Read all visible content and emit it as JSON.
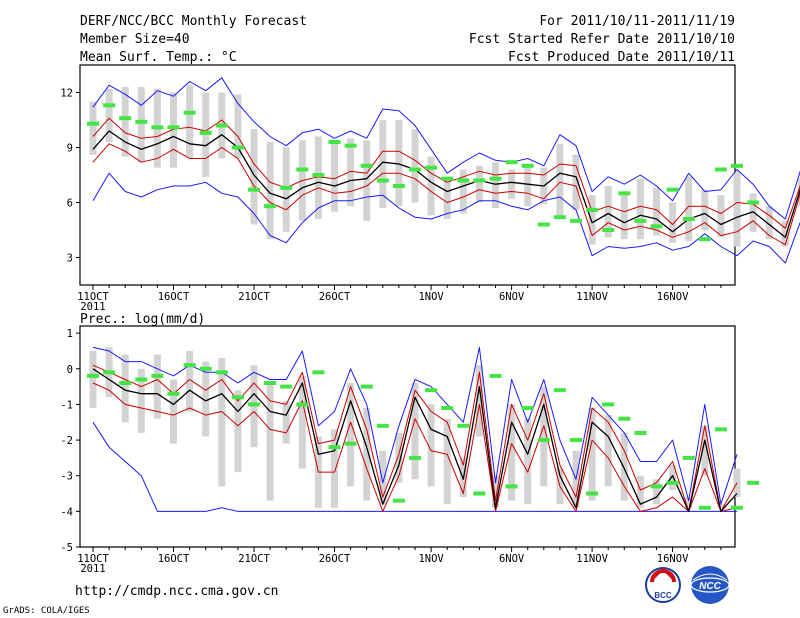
{
  "header": {
    "title": "DERF/NCC/BCC Monthly Forecast",
    "member_size": "Member Size=40",
    "variable": "Mean Surf. Temp.: °C",
    "period": "For 2011/10/11-2011/11/19",
    "start_date": "Fcst Started Refer Date 2011/10/10",
    "produced_date": "Fcst Produced Date 2011/10/11"
  },
  "footer": {
    "url": "http://cmdp.ncc.cma.gov.cn",
    "grads": "GrADS: COLA/IGES",
    "logo_bcc": "BCC",
    "logo_ncc": "NCC"
  },
  "colors": {
    "spread": "#1a1aff",
    "ensemble": "#cc0000",
    "mean": "#000000",
    "range_bar": "#d3d3d3",
    "marker": "#44e444"
  },
  "chart_data": [
    {
      "type": "line",
      "title": "Mean Surf. Temp.: °C",
      "x_tick_labels": [
        "11OCT",
        "16OCT",
        "21OCT",
        "26OCT",
        "1NOV",
        "6NOV",
        "11NOV",
        "16NOV"
      ],
      "x_year_label": "2011",
      "ylim": [
        1.5,
        13.5
      ],
      "y_ticks": [
        3,
        6,
        9,
        12
      ],
      "y_tick_labels": [
        "3",
        "6",
        "9",
        "12"
      ],
      "series": [
        {
          "name": "max",
          "values": [
            6.1,
            7.6,
            6.6,
            6.3,
            6.7,
            6.9,
            6.9,
            7.1,
            6.5,
            6.3,
            5.4,
            4.2,
            3.8,
            4.9,
            5.7,
            6.1,
            6.1,
            6.3,
            6.4,
            5.7,
            5.2,
            5.1,
            5.4,
            5.6,
            6.1,
            6.1,
            5.8,
            5.6,
            6.1,
            6.3,
            5.6,
            3.1,
            3.6,
            3.5,
            3.6,
            3.8,
            3.4,
            3.6,
            4.3,
            3.6,
            3.1,
            3.9,
            3.6,
            2.7,
            5.1,
            6.1,
            7.1,
            4.9
          ]
        },
        {
          "name": "min",
          "values": [
            11.2,
            12.4,
            11.9,
            11.3,
            12.1,
            11.8,
            12.6,
            12.1,
            12.8,
            11.4,
            10.4,
            9.6,
            9.1,
            9.8,
            10.0,
            9.5,
            9.9,
            9.5,
            11.1,
            11.0,
            10.2,
            8.9,
            7.6,
            8.2,
            8.7,
            8.3,
            8.2,
            8.4,
            8.0,
            9.7,
            9.1,
            6.6,
            7.4,
            7.0,
            7.5,
            6.9,
            6.1,
            7.6,
            6.6,
            6.7,
            7.8,
            7.0,
            5.8,
            5.1,
            7.9,
            9.1,
            8.3,
            7.0
          ]
        },
        {
          "name": "ens_upper",
          "values": [
            9.6,
            10.6,
            9.8,
            9.5,
            9.6,
            10.0,
            10.1,
            9.9,
            10.5,
            9.6,
            8.1,
            7.1,
            6.8,
            7.2,
            7.4,
            7.3,
            7.7,
            7.6,
            8.8,
            8.8,
            8.3,
            7.6,
            7.1,
            7.4,
            7.7,
            7.5,
            7.6,
            7.6,
            7.5,
            8.1,
            8.0,
            5.5,
            5.8,
            5.5,
            5.8,
            5.6,
            4.8,
            5.8,
            5.8,
            5.4,
            6.0,
            5.9,
            5.3,
            4.6,
            7.1,
            8.0,
            7.8,
            6.0
          ]
        },
        {
          "name": "ens_lower",
          "values": [
            8.2,
            9.2,
            8.8,
            8.2,
            8.4,
            8.9,
            8.4,
            8.4,
            9.0,
            8.4,
            6.9,
            6.0,
            5.6,
            6.4,
            6.8,
            6.5,
            6.6,
            6.9,
            7.6,
            7.6,
            7.3,
            6.6,
            6.0,
            6.3,
            6.7,
            6.5,
            6.6,
            6.5,
            6.2,
            7.1,
            6.9,
            4.2,
            4.9,
            4.5,
            4.7,
            4.5,
            4.1,
            4.4,
            4.9,
            4.2,
            4.4,
            5.0,
            4.2,
            3.7,
            6.7,
            7.3,
            7.0,
            5.4
          ]
        },
        {
          "name": "mean",
          "values": [
            8.9,
            9.9,
            9.3,
            8.9,
            9.2,
            9.6,
            9.2,
            9.1,
            9.7,
            9.0,
            7.5,
            6.5,
            6.2,
            6.8,
            7.1,
            6.9,
            7.2,
            7.3,
            8.2,
            8.1,
            7.8,
            7.1,
            6.6,
            6.9,
            7.2,
            7.0,
            7.1,
            7.0,
            6.9,
            7.6,
            7.4,
            4.9,
            5.4,
            4.9,
            5.3,
            5.1,
            4.4,
            5.1,
            5.4,
            4.8,
            5.2,
            5.5,
            4.8,
            4.1,
            6.9,
            7.7,
            7.4,
            5.7
          ]
        },
        {
          "name": "range_top",
          "values": [
            11.5,
            12.2,
            12.3,
            12.3,
            12.2,
            12.0,
            12.4,
            12.0,
            12.0,
            11.9,
            10.0,
            9.3,
            9.0,
            9.4,
            9.6,
            9.2,
            9.5,
            9.4,
            10.5,
            10.5,
            10.0,
            8.5,
            7.4,
            7.8,
            8.0,
            8.2,
            7.8,
            8.0,
            7.9,
            9.2,
            8.6,
            6.4,
            6.9,
            6.6,
            7.3,
            6.8,
            6.0,
            7.4,
            6.7,
            6.4,
            7.7,
            6.5,
            5.8,
            5.0,
            7.3,
            8.9,
            9.3,
            6.2
          ]
        },
        {
          "name": "range_bottom",
          "values": [
            8.6,
            9.3,
            8.5,
            8.2,
            7.9,
            7.9,
            8.4,
            7.4,
            8.4,
            8.4,
            4.8,
            4.0,
            4.4,
            5.0,
            5.1,
            5.5,
            5.8,
            5.0,
            5.7,
            5.8,
            6.0,
            5.3,
            5.1,
            5.4,
            6.0,
            5.7,
            6.2,
            5.8,
            5.9,
            5.3,
            5.6,
            3.7,
            4.1,
            4.0,
            4.0,
            4.2,
            3.8,
            3.9,
            4.5,
            4.1,
            3.6,
            4.4,
            4.0,
            3.6,
            5.8,
            6.1,
            7.1,
            5.6
          ]
        },
        {
          "name": "obs_marker",
          "values": [
            10.3,
            11.3,
            10.6,
            10.4,
            10.1,
            10.1,
            10.9,
            9.8,
            10.2,
            9.0,
            6.7,
            5.8,
            6.8,
            7.8,
            7.5,
            9.3,
            9.1,
            8.0,
            7.2,
            6.9,
            7.8,
            7.9,
            7.3,
            7.2,
            7.2,
            7.3,
            8.2,
            8.0,
            4.8,
            5.2,
            5.0,
            5.6,
            4.5,
            6.5,
            5.0,
            4.7,
            6.7,
            5.1,
            4.0,
            7.8,
            8.0,
            6.0
          ]
        }
      ]
    },
    {
      "type": "line",
      "title": "Prec.: log(mm/d)",
      "x_tick_labels": [
        "11OCT",
        "16OCT",
        "21OCT",
        "26OCT",
        "1NOV",
        "6NOV",
        "11NOV",
        "16NOV"
      ],
      "x_year_label": "2011",
      "ylim": [
        -5,
        1.2
      ],
      "y_ticks": [
        -5,
        -4,
        -3,
        -2,
        -1,
        0,
        1
      ],
      "y_tick_labels": [
        "-5",
        "-4",
        "-3",
        "-2",
        "-1",
        "0",
        "1"
      ],
      "series": [
        {
          "name": "max",
          "values": [
            0.6,
            0.5,
            0.2,
            0.2,
            0.0,
            -0.2,
            0.1,
            -0.1,
            -0.1,
            -0.4,
            -0.1,
            -0.3,
            -0.3,
            0.5,
            -1.6,
            -1.2,
            0.0,
            -1.0,
            -3.2,
            -1.6,
            -0.3,
            -0.5,
            -1.0,
            -1.5,
            0.6,
            -3.2,
            -0.3,
            -1.5,
            -0.3,
            -2.0,
            -3.1,
            -0.8,
            -1.3,
            -1.8,
            -2.6,
            -2.6,
            -2.0,
            -3.7,
            -1.0,
            -3.8,
            -2.4
          ]
        },
        {
          "name": "min",
          "values": [
            -1.5,
            -2.2,
            -2.6,
            -3.0,
            -4.0,
            -4.0,
            -4.0,
            -4.0,
            -3.9,
            -4.0,
            -4.0,
            -4.0,
            -4.0,
            -4.0,
            -4.0,
            -4.0,
            -4.0,
            -4.0,
            -4.0,
            -4.0,
            -4.0,
            -4.0,
            -4.0,
            -4.0,
            -4.0,
            -4.0,
            -4.0,
            -4.0,
            -4.0,
            -4.0,
            -4.0,
            -4.0,
            -4.0,
            -4.0,
            -4.0,
            -4.0,
            -4.0,
            -4.0,
            -4.0,
            -4.0,
            -4.0
          ]
        },
        {
          "name": "ens_upper",
          "values": [
            0.1,
            -0.1,
            -0.3,
            -0.5,
            -0.3,
            -0.7,
            -0.3,
            -0.6,
            -0.3,
            -0.9,
            -0.4,
            -0.9,
            -1.0,
            -0.1,
            -2.1,
            -2.0,
            -0.5,
            -1.7,
            -3.6,
            -2.4,
            -0.6,
            -1.2,
            -1.5,
            -2.7,
            -0.1,
            -3.7,
            -1.0,
            -2.0,
            -0.7,
            -2.7,
            -3.6,
            -1.1,
            -1.5,
            -2.3,
            -3.4,
            -3.2,
            -2.6,
            -4.0,
            -1.6,
            -4.0,
            -3.2
          ]
        },
        {
          "name": "ens_lower",
          "values": [
            -0.4,
            -0.6,
            -1.0,
            -1.1,
            -1.2,
            -1.3,
            -1.1,
            -1.3,
            -1.2,
            -1.6,
            -1.2,
            -1.7,
            -1.8,
            -0.9,
            -2.9,
            -2.9,
            -1.5,
            -2.8,
            -4.0,
            -3.0,
            -1.4,
            -2.3,
            -2.4,
            -3.5,
            -1.0,
            -4.0,
            -2.1,
            -2.9,
            -1.6,
            -3.3,
            -4.0,
            -2.0,
            -2.5,
            -3.3,
            -4.0,
            -3.9,
            -3.6,
            -4.0,
            -2.8,
            -4.0,
            -3.9
          ]
        },
        {
          "name": "mean",
          "values": [
            0.0,
            -0.3,
            -0.6,
            -0.7,
            -0.7,
            -1.0,
            -0.6,
            -0.9,
            -0.7,
            -1.2,
            -0.7,
            -1.2,
            -1.3,
            -0.4,
            -2.4,
            -2.3,
            -0.9,
            -2.2,
            -3.8,
            -2.7,
            -0.8,
            -1.7,
            -1.9,
            -3.1,
            -0.5,
            -3.9,
            -1.5,
            -2.4,
            -1.0,
            -3.0,
            -3.9,
            -1.5,
            -1.9,
            -2.8,
            -3.8,
            -3.6,
            -3.0,
            -4.0,
            -2.0,
            -4.0,
            -3.5
          ]
        },
        {
          "name": "range_top",
          "values": [
            0.5,
            0.6,
            0.4,
            0.0,
            0.4,
            -0.3,
            0.5,
            0.2,
            0.3,
            -0.6,
            0.1,
            -0.4,
            -0.9,
            -0.2,
            -1.9,
            -1.7,
            -0.4,
            -1.1,
            -2.3,
            -1.8,
            -0.4,
            -1.0,
            -1.4,
            -2.5,
            0.1,
            -3.0,
            -1.0,
            -1.4,
            -0.5,
            -2.8,
            -2.3,
            -1.1,
            -1.3,
            -1.8,
            -3.0,
            -3.1,
            -2.7,
            -3.6,
            -1.6,
            -3.8,
            -2.8
          ]
        },
        {
          "name": "range_bottom",
          "values": [
            -1.1,
            -0.8,
            -1.5,
            -1.8,
            -1.4,
            -2.1,
            -1.2,
            -1.9,
            -3.3,
            -2.9,
            -2.2,
            -3.7,
            -2.1,
            -2.8,
            -3.9,
            -3.9,
            -3.3,
            -3.7,
            -3.8,
            -3.2,
            -3.1,
            -3.3,
            -3.8,
            -3.6,
            -1.9,
            -3.9,
            -3.7,
            -3.8,
            -3.3,
            -3.8,
            -3.9,
            -3.7,
            -3.3,
            -3.7,
            -3.9,
            -3.8,
            -3.4,
            -3.9,
            -3.0,
            -3.9,
            -3.6
          ]
        },
        {
          "name": "obs_marker",
          "values": [
            -0.2,
            -0.1,
            -0.4,
            -0.3,
            -0.2,
            -0.7,
            0.1,
            0.0,
            -0.1,
            -0.8,
            -1.0,
            -0.4,
            -0.5,
            -1.0,
            -0.1,
            -2.2,
            -2.1,
            -0.5,
            -1.6,
            -3.7,
            -2.5,
            -0.6,
            -1.1,
            -1.6,
            -3.5,
            -0.2,
            -3.3,
            -1.1,
            -2.0,
            -0.6,
            -2.0,
            -3.5,
            -1.0,
            -1.4,
            -1.8,
            -3.3,
            -3.2,
            -2.5,
            -3.9,
            -1.7,
            -3.9,
            -3.2
          ]
        }
      ]
    }
  ]
}
